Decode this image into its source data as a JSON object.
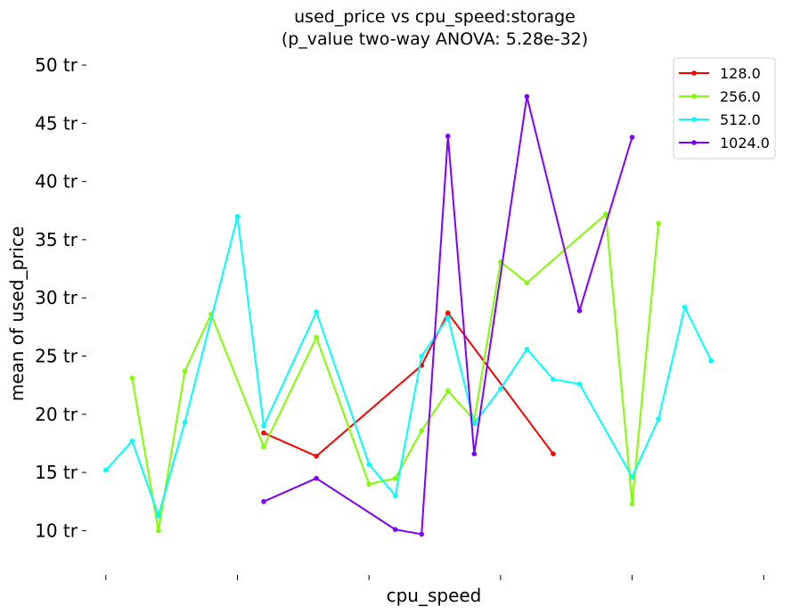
{
  "chart_data": {
    "type": "line",
    "title": "used_price vs cpu_speed:storage",
    "subtitle": "(p_value two-way ANOVA: 5.28e-32)",
    "xlabel": "cpu_speed",
    "ylabel": "mean of used_price",
    "y_tick_labels": [
      "10 tr",
      "15 tr",
      "20 tr",
      "25 tr",
      "30 tr",
      "35 tr",
      "40 tr",
      "45 tr",
      "50 tr"
    ],
    "y_ticks": [
      10,
      15,
      20,
      25,
      30,
      35,
      40,
      45,
      50
    ],
    "ylim": [
      6.2,
      51
    ],
    "xlim": [
      -0.5,
      25.5
    ],
    "x_tick_positions": [
      0,
      5,
      10,
      15,
      20,
      25
    ],
    "x_tick_labels": [
      "",
      "",
      "",
      "",
      "",
      ""
    ],
    "grid": false,
    "legend_position": "top-right",
    "series": [
      {
        "name": "128.0",
        "color": "#ff0000",
        "points": [
          [
            6,
            18.4
          ],
          [
            8,
            16.4
          ],
          [
            12,
            24.2
          ],
          [
            13,
            28.7
          ],
          [
            17,
            16.6
          ]
        ]
      },
      {
        "name": "256.0",
        "color": "#80ff00",
        "points": [
          [
            1,
            23.1
          ],
          [
            2,
            10.0
          ],
          [
            3,
            23.7
          ],
          [
            4,
            28.6
          ],
          [
            6,
            17.2
          ],
          [
            8,
            26.6
          ],
          [
            10,
            14.0
          ],
          [
            11,
            14.5
          ],
          [
            12,
            18.6
          ],
          [
            13,
            22.0
          ],
          [
            14,
            19.5
          ],
          [
            15,
            33.1
          ],
          [
            16,
            31.3
          ],
          [
            19,
            37.2
          ],
          [
            20,
            12.3
          ],
          [
            21,
            36.4
          ]
        ]
      },
      {
        "name": "512.0",
        "color": "#00ffff",
        "points": [
          [
            0,
            15.2
          ],
          [
            1,
            17.7
          ],
          [
            2,
            11.3
          ],
          [
            3,
            19.3
          ],
          [
            5,
            37.0
          ],
          [
            6,
            19.0
          ],
          [
            8,
            28.8
          ],
          [
            10,
            15.7
          ],
          [
            11,
            13.0
          ],
          [
            12,
            25.0
          ],
          [
            13,
            28.3
          ],
          [
            14,
            19.2
          ],
          [
            15,
            22.2
          ],
          [
            16,
            25.6
          ],
          [
            17,
            23.0
          ],
          [
            18,
            22.6
          ],
          [
            20,
            14.6
          ],
          [
            21,
            19.6
          ],
          [
            22,
            29.2
          ],
          [
            23,
            24.6
          ]
        ]
      },
      {
        "name": "1024.0",
        "color": "#8000ff",
        "points": [
          [
            6,
            12.5
          ],
          [
            8,
            14.5
          ],
          [
            11,
            10.1
          ],
          [
            12,
            9.7
          ],
          [
            13,
            43.9
          ],
          [
            14,
            16.6
          ],
          [
            16,
            47.3
          ],
          [
            18,
            28.9
          ],
          [
            20,
            43.8
          ]
        ]
      }
    ]
  }
}
